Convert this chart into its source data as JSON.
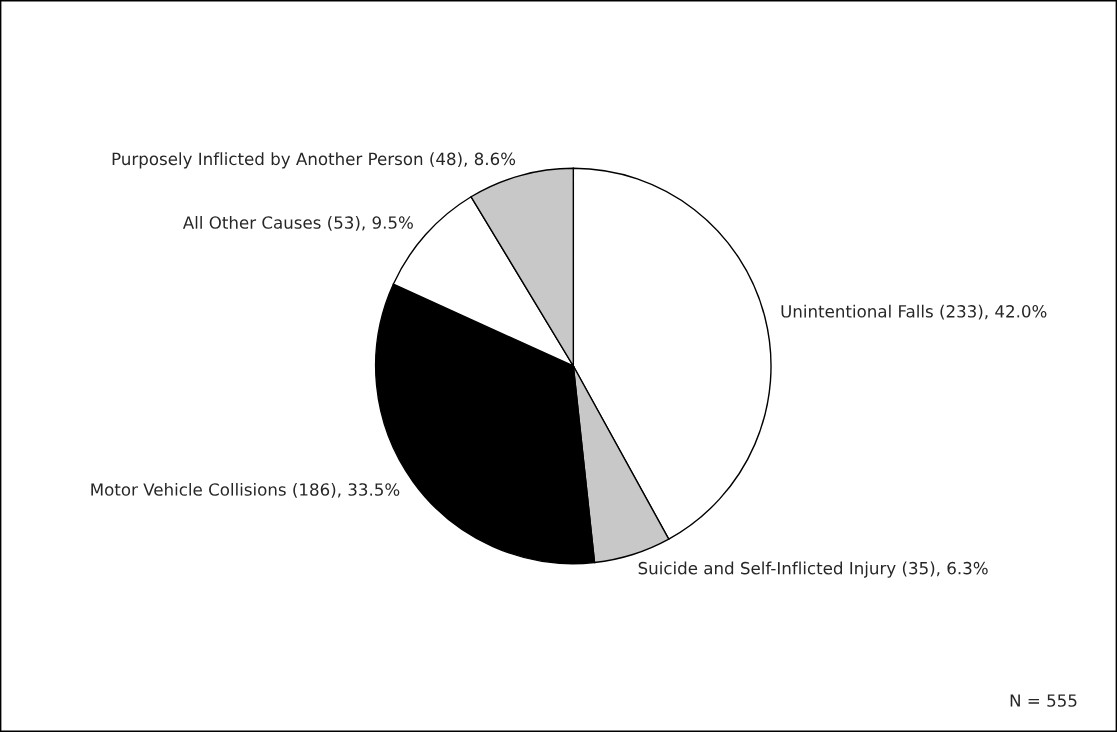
{
  "chart_data": {
    "type": "pie",
    "categories": [
      "Unintentional Falls (233), 42.0%",
      "Suicide and Self-Inflicted Injury (35), 6.3%",
      "Motor Vehicle Collisions (186), 33.5%",
      "All Other Causes (53), 9.5%",
      "Purposely Inflicted by Another Person (48), 8.6%"
    ],
    "values": [
      233,
      35,
      186,
      53,
      48
    ],
    "colors": [
      "#ffffff",
      "#c8c8c8",
      "#000000",
      "#ffffff",
      "#c8c8c8"
    ],
    "annotations": [
      "N = 555"
    ],
    "legend": false
  }
}
